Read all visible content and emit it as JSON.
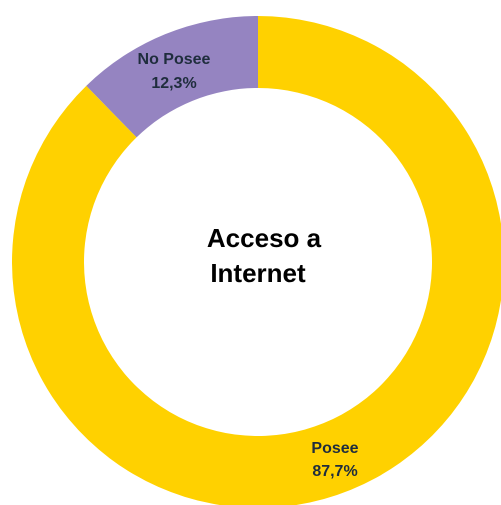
{
  "chart_data": {
    "type": "pie",
    "variant": "donut",
    "center_title": [
      "Acceso a",
      "Internet"
    ],
    "categories": [
      "No Posee",
      "Posee"
    ],
    "values": [
      12.3,
      87.7
    ],
    "value_labels": [
      "12,3%",
      "87,7%"
    ],
    "colors": [
      "#9584c1",
      "#ffd100"
    ],
    "start": "top (12 o'clock), counterclockwise for first slice",
    "legend": "none"
  }
}
